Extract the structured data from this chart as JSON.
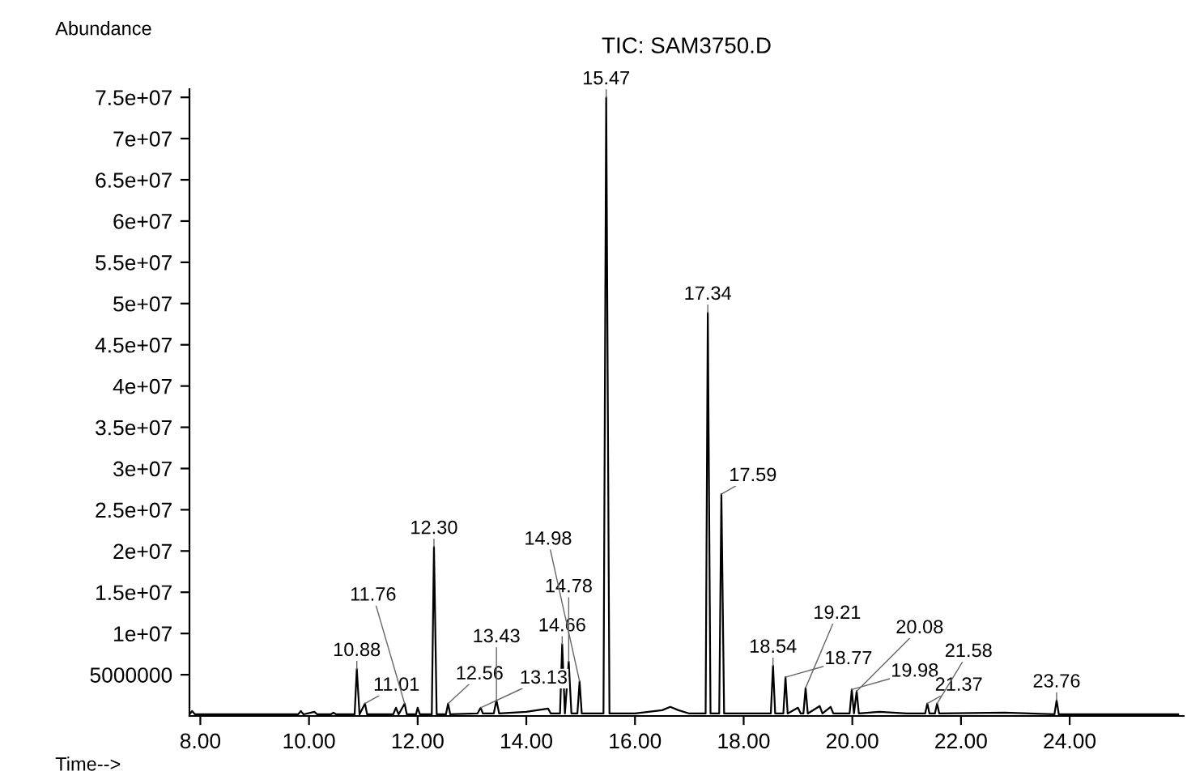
{
  "chart_data": {
    "type": "line",
    "title": "TIC: SAM3750.D",
    "xlabel": "Time-->",
    "ylabel": "Abundance",
    "x": [
      7.8,
      7.85,
      7.9,
      9.8,
      9.85,
      9.9,
      10.1,
      10.15,
      10.4,
      10.45,
      10.5,
      10.84,
      10.88,
      10.93,
      11.03,
      11.07,
      11.55,
      11.6,
      11.65,
      11.76,
      11.8,
      11.97,
      12.0,
      12.04,
      12.26,
      12.3,
      12.35,
      12.52,
      12.56,
      12.6,
      13.1,
      13.16,
      13.2,
      13.4,
      13.45,
      13.5,
      14.0,
      14.4,
      14.45,
      14.62,
      14.66,
      14.71,
      14.78,
      14.83,
      14.94,
      14.98,
      15.02,
      15.42,
      15.47,
      15.53,
      16.0,
      16.5,
      16.65,
      16.8,
      17.0,
      17.3,
      17.34,
      17.39,
      17.55,
      17.59,
      17.64,
      18.5,
      18.54,
      18.58,
      18.73,
      18.77,
      18.81,
      19.0,
      19.05,
      19.1,
      19.14,
      19.18,
      19.4,
      19.45,
      19.6,
      19.65,
      19.95,
      19.99,
      20.03,
      20.08,
      20.12,
      20.5,
      21.0,
      21.34,
      21.38,
      21.42,
      21.52,
      21.56,
      21.6,
      22.8,
      23.72,
      23.76,
      23.8,
      25.0,
      26.0
    ],
    "series": [
      {
        "color": "#000000",
        "values": [
          200000,
          600000,
          200000,
          200000,
          600000,
          200000,
          500000,
          200000,
          200000,
          400000,
          200000,
          200000,
          5700000,
          200000,
          1500000,
          200000,
          200000,
          1000000,
          200000,
          1500000,
          200000,
          200000,
          1000000,
          200000,
          200000,
          20500000,
          200000,
          200000,
          1500000,
          200000,
          300000,
          1000000,
          300000,
          300000,
          1900000,
          300000,
          500000,
          900000,
          300000,
          300000,
          8700000,
          300000,
          6600000,
          300000,
          300000,
          4200000,
          300000,
          300000,
          75000000,
          300000,
          300000,
          700000,
          1100000,
          700000,
          300000,
          300000,
          48900000,
          300000,
          300000,
          26900000,
          300000,
          300000,
          6100000,
          300000,
          300000,
          4700000,
          300000,
          1000000,
          300000,
          300000,
          3400000,
          300000,
          1200000,
          300000,
          1100000,
          300000,
          300000,
          3200000,
          300000,
          3000000,
          300000,
          500000,
          300000,
          300000,
          1500000,
          300000,
          300000,
          1500000,
          300000,
          400000,
          200000,
          1900000,
          200000,
          200000,
          200000
        ]
      }
    ],
    "xlim": [
      7.8,
      26.1
    ],
    "ylim": [
      0,
      76000000
    ],
    "xticks": [
      {
        "value": 8,
        "label": "8.00"
      },
      {
        "value": 10,
        "label": "10.00"
      },
      {
        "value": 12,
        "label": "12.00"
      },
      {
        "value": 14,
        "label": "14.00"
      },
      {
        "value": 16,
        "label": "16.00"
      },
      {
        "value": 18,
        "label": "18.00"
      },
      {
        "value": 20,
        "label": "20.00"
      },
      {
        "value": 22,
        "label": "22.00"
      },
      {
        "value": 24,
        "label": "24.00"
      }
    ],
    "yticks": [
      {
        "value": 5000000,
        "label": "5000000"
      },
      {
        "value": 10000000,
        "label": "1e+07"
      },
      {
        "value": 15000000,
        "label": "1.5e+07"
      },
      {
        "value": 20000000,
        "label": "2e+07"
      },
      {
        "value": 25000000,
        "label": "2.5e+07"
      },
      {
        "value": 30000000,
        "label": "3e+07"
      },
      {
        "value": 35000000,
        "label": "3.5e+07"
      },
      {
        "value": 40000000,
        "label": "4e+07"
      },
      {
        "value": 45000000,
        "label": "4.5e+07"
      },
      {
        "value": 50000000,
        "label": "5e+07"
      },
      {
        "value": 55000000,
        "label": "5.5e+07"
      },
      {
        "value": 60000000,
        "label": "6e+07"
      },
      {
        "value": 65000000,
        "label": "6.5e+07"
      },
      {
        "value": 70000000,
        "label": "7e+07"
      },
      {
        "value": 75000000,
        "label": "7.5e+07"
      }
    ],
    "grid": false,
    "marker": "none",
    "line_style": "solid",
    "annotations": [
      {
        "text": "10.88",
        "x": 10.88,
        "y": 5700000
      },
      {
        "text": "11.01",
        "x": 11.03,
        "y": 1500000
      },
      {
        "text": "11.76",
        "x": 11.76,
        "y": 1500000
      },
      {
        "text": "12.30",
        "x": 12.3,
        "y": 20500000
      },
      {
        "text": "12.56",
        "x": 12.56,
        "y": 1500000
      },
      {
        "text": "13.13",
        "x": 13.16,
        "y": 1000000
      },
      {
        "text": "13.43",
        "x": 13.45,
        "y": 1900000
      },
      {
        "text": "14.66",
        "x": 14.66,
        "y": 8700000
      },
      {
        "text": "14.78",
        "x": 14.78,
        "y": 6600000
      },
      {
        "text": "14.98",
        "x": 14.98,
        "y": 4200000
      },
      {
        "text": "15.47",
        "x": 15.47,
        "y": 75000000
      },
      {
        "text": "17.34",
        "x": 17.34,
        "y": 48900000
      },
      {
        "text": "17.59",
        "x": 17.59,
        "y": 26900000
      },
      {
        "text": "18.54",
        "x": 18.54,
        "y": 6100000
      },
      {
        "text": "18.77",
        "x": 18.77,
        "y": 4700000
      },
      {
        "text": "19.21",
        "x": 19.14,
        "y": 3400000
      },
      {
        "text": "19.98",
        "x": 19.99,
        "y": 3200000
      },
      {
        "text": "20.08",
        "x": 20.08,
        "y": 3000000
      },
      {
        "text": "21.37",
        "x": 21.38,
        "y": 1500000
      },
      {
        "text": "21.58",
        "x": 21.56,
        "y": 1500000
      },
      {
        "text": "23.76",
        "x": 23.76,
        "y": 1900000
      }
    ]
  }
}
